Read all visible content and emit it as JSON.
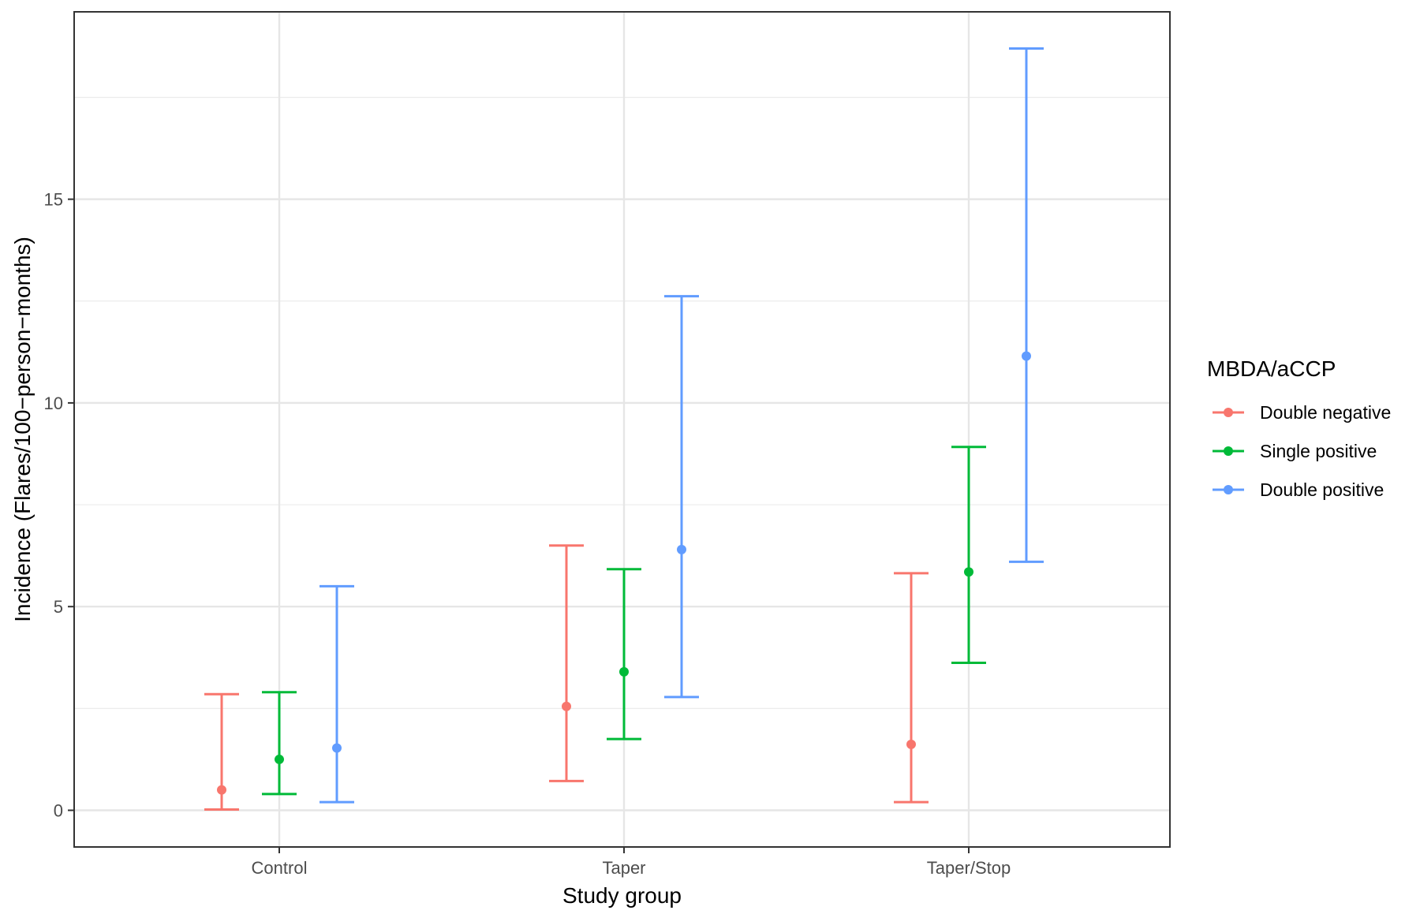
{
  "chart_data": {
    "type": "errorbar",
    "title": "",
    "xlabel": "Study group",
    "ylabel": "Incidence (Flares/100−person−months)",
    "categories": [
      "Control",
      "Taper",
      "Taper/Stop"
    ],
    "ylim": [
      -0.9,
      19.6
    ],
    "yticks": [
      0,
      5,
      10,
      15
    ],
    "yticks_labels": [
      "0",
      "5",
      "10",
      "15"
    ],
    "grid": true,
    "legend": {
      "title": "MBDA/aCCP",
      "position": "right"
    },
    "series": [
      {
        "name": "Double negative",
        "color": "#F8766D",
        "estimate": [
          0.5,
          2.55,
          1.62
        ],
        "lower": [
          0.02,
          0.72,
          0.2
        ],
        "upper": [
          2.85,
          6.5,
          5.82
        ]
      },
      {
        "name": "Single positive",
        "color": "#00BA38",
        "estimate": [
          1.25,
          3.4,
          5.85
        ],
        "lower": [
          0.4,
          1.75,
          3.62
        ],
        "upper": [
          2.9,
          5.92,
          8.92
        ]
      },
      {
        "name": "Double positive",
        "color": "#619CFF",
        "estimate": [
          1.53,
          6.4,
          11.15
        ],
        "lower": [
          0.2,
          2.78,
          6.1
        ],
        "upper": [
          5.5,
          12.62,
          18.7
        ]
      }
    ]
  }
}
